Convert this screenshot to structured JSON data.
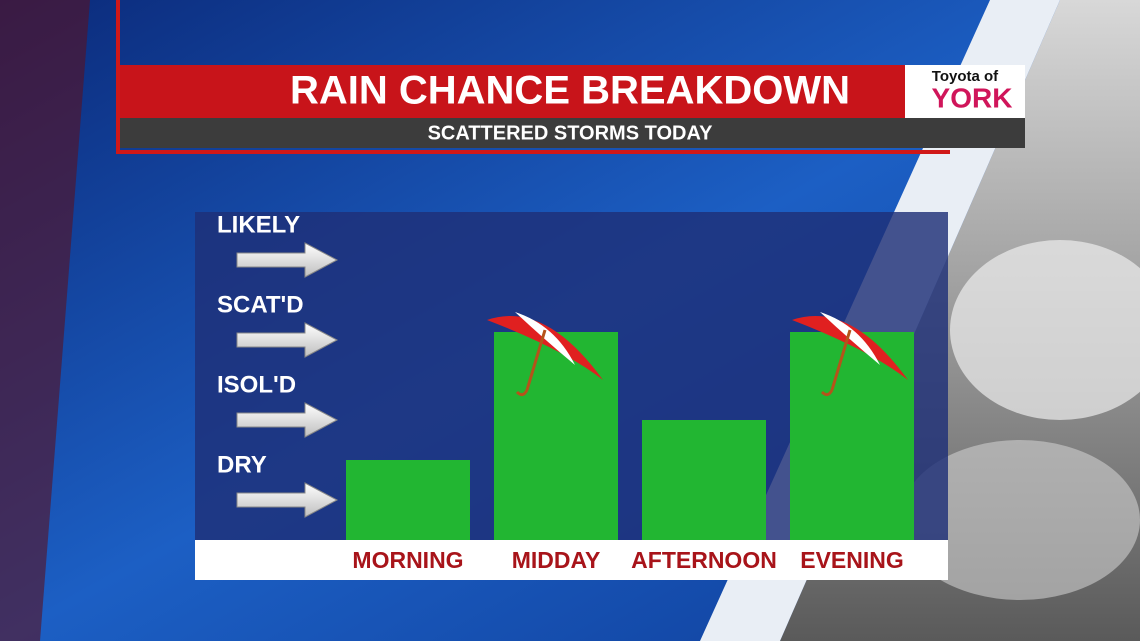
{
  "chart_data": {
    "type": "bar",
    "title": "RAIN CHANCE BREAKDOWN",
    "subtitle": "SCATTERED STORMS TODAY",
    "categories": [
      "MORNING",
      "MIDDAY",
      "AFTERNOON",
      "EVENING"
    ],
    "values": [
      1.5,
      3.1,
      2,
      3.1
    ],
    "color": "#22b632",
    "ylim": [
      0.5,
      4.6
    ],
    "yticks": [
      {
        "value": 1,
        "label": "DRY"
      },
      {
        "value": 2,
        "label": "ISOL'D"
      },
      {
        "value": 3,
        "label": "SCAT'D"
      },
      {
        "value": 4,
        "label": "LIKELY"
      }
    ]
  },
  "sponsor": {
    "line1": "Toyota of",
    "line2": "YORK"
  }
}
